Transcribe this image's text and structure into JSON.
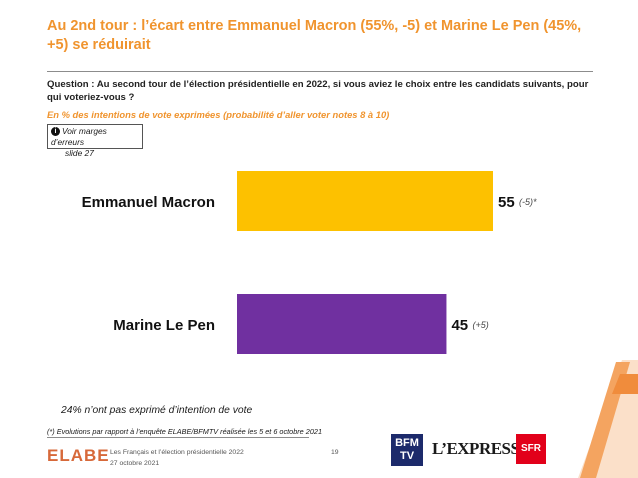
{
  "title": "Au 2nd tour : l’écart entre Emmanuel Macron (55%, -5) et Marine Le Pen (45%, +5) se réduirait",
  "question": "Question : Au second tour de l’élection présidentielle en 2022, si vous aviez le choix entre les candidats suivants, pour qui voteriez-vous ?",
  "subtitle": "En % des intentions de vote exprimées (probabilité d’aller voter notes 8 à 10)",
  "note": {
    "line1": "Voir marges d’erreurs",
    "line2": "slide 27"
  },
  "chart_data": {
    "type": "bar",
    "orientation": "horizontal",
    "categories": [
      "Emmanuel Macron",
      "Marine Le Pen"
    ],
    "values": [
      55,
      45
    ],
    "changes": [
      "(-5)*",
      "(+5)"
    ],
    "colors": [
      "#fdc100",
      "#7030a0"
    ],
    "xlim": [
      0,
      55
    ],
    "grid": false
  },
  "abstention_note": "24% n’ont pas exprimé d’intention de vote",
  "footnote": "(*) Evolutions par rapport à l’enquête ELABE/BFMTV réalisée les 5 et 6 octobre 2021",
  "footer": {
    "logo": "ELABE",
    "report": "Les Français et l’élection présidentielle 2022",
    "date": "27 octobre 2021",
    "page": "19",
    "partner1_line1": "BFM",
    "partner1_line2": "TV",
    "partner2": "L’EXPRESS",
    "partner3": "SFR"
  }
}
